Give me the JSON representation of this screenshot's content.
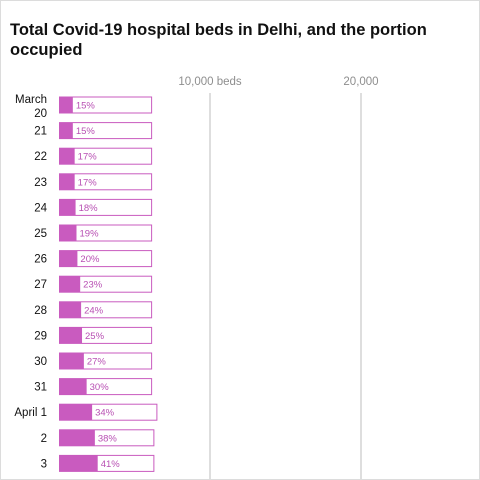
{
  "colors": {
    "occupied": "#c95bbf",
    "capacity_outline": "#c95bbf",
    "gridline": "#c8c8c8",
    "tick_text": "#8e8e8e",
    "pct_text": "#b84fb3"
  },
  "chart_data": {
    "type": "bar",
    "orientation": "horizontal",
    "title": "Total Covid-19 hospital beds in Delhi, and the portion occupied",
    "xlabel": "",
    "ylabel": "",
    "grid": true,
    "xlim": [
      0,
      22500
    ],
    "x_ticks": [
      {
        "value": 10000,
        "label": "10,000 beds"
      },
      {
        "value": 20000,
        "label": "20,000"
      }
    ],
    "categories": [
      [
        "March",
        "20"
      ],
      [
        "21"
      ],
      [
        "22"
      ],
      [
        "23"
      ],
      [
        "24"
      ],
      [
        "25"
      ],
      [
        "26"
      ],
      [
        "27"
      ],
      [
        "28"
      ],
      [
        "29"
      ],
      [
        "30"
      ],
      [
        "31"
      ],
      [
        "April 1"
      ],
      [
        "2"
      ],
      [
        "3"
      ]
    ],
    "series": [
      {
        "values": [
          6100,
          6100,
          6100,
          6100,
          6100,
          6100,
          6100,
          6100,
          6100,
          6100,
          6100,
          6100,
          6450,
          6250,
          6250
        ]
      }
    ],
    "occupied_percent": [
      15,
      15,
      17,
      17,
      18,
      19,
      20,
      23,
      24,
      25,
      27,
      30,
      34,
      38,
      41
    ],
    "occupied_labels": [
      "15%",
      "15%",
      "17%",
      "17%",
      "18%",
      "19%",
      "20%",
      "23%",
      "24%",
      "25%",
      "27%",
      "30%",
      "34%",
      "38%",
      "41%"
    ]
  }
}
